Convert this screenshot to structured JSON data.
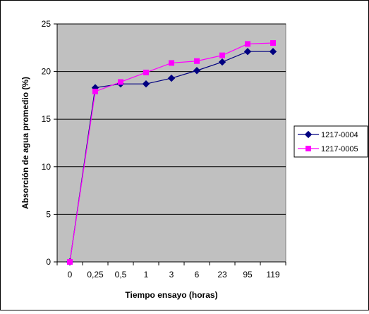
{
  "chart_data": {
    "type": "line",
    "categories": [
      "0",
      "0,25",
      "0,5",
      "1",
      "3",
      "6",
      "23",
      "95",
      "119"
    ],
    "series": [
      {
        "name": "1217-0004",
        "color": "#000080",
        "marker": "diamond",
        "values": [
          0,
          18.3,
          18.7,
          18.7,
          19.3,
          20.1,
          21.0,
          22.1,
          22.1
        ]
      },
      {
        "name": "1217-0005",
        "color": "#ff00ff",
        "marker": "square",
        "values": [
          0,
          17.9,
          18.9,
          19.9,
          20.9,
          21.1,
          21.7,
          22.9,
          23.0
        ]
      }
    ],
    "xlabel": "Tiempo ensayo (horas)",
    "ylabel": "Absorción de agua promedio (%)",
    "ylim": [
      0,
      25
    ],
    "yticks": [
      "0",
      "5",
      "10",
      "15",
      "20",
      "25"
    ],
    "grid": true,
    "plot_background": "#c0c0c0",
    "legend_position": "right"
  }
}
